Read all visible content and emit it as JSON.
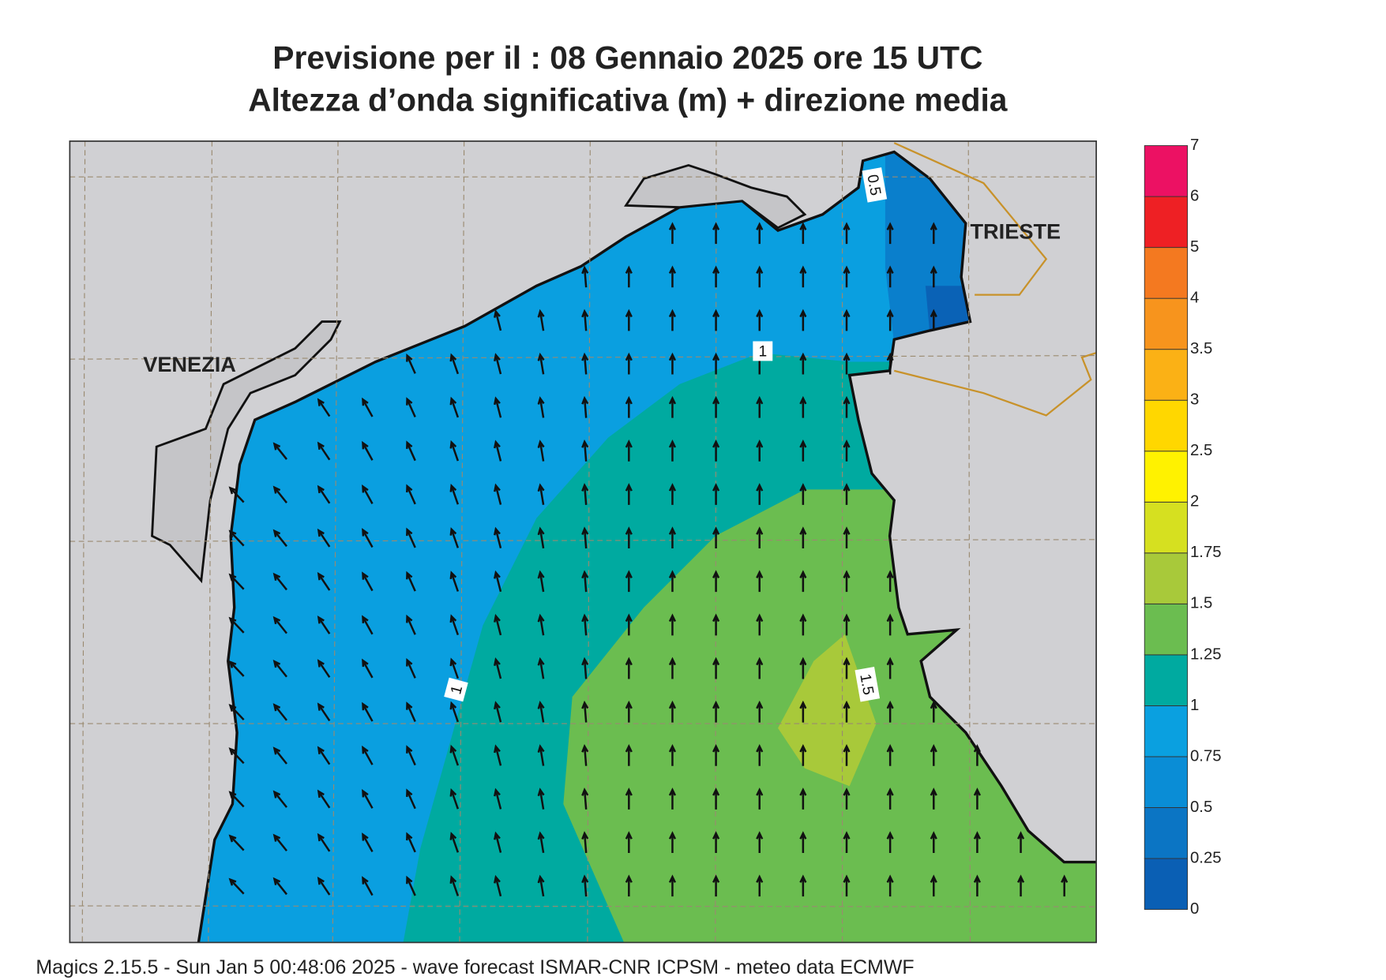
{
  "header": {
    "title": "Previsione per il  :  08  Gennaio  2025   ore 15 UTC",
    "subtitle": "Altezza d’onda significativa (m) + direzione media"
  },
  "places": [
    "VENEZIA",
    "TRIESTE"
  ],
  "contour_labels": [
    "0.5",
    "1",
    "1",
    "1.5"
  ],
  "colorbar": {
    "levels": [
      0,
      0.25,
      0.5,
      0.75,
      1,
      1.25,
      1.5,
      1.75,
      2,
      2.5,
      3,
      3.5,
      4,
      5,
      6,
      7
    ],
    "colors": [
      "#0a5fb4",
      "#0b75c4",
      "#0a8dd6",
      "#0aa0e0",
      "#00aaa0",
      "#6bbd50",
      "#a8c93a",
      "#d6e020",
      "#fff200",
      "#ffd700",
      "#fbb115",
      "#f7941d",
      "#f47920",
      "#ee2024",
      "#ec1163"
    ]
  },
  "footer": "Magics 2.15.5 - Sun Jan  5 00:48:06 2025 - wave forecast  ISMAR-CNR  ICPSM - meteo data   ECMWF"
}
